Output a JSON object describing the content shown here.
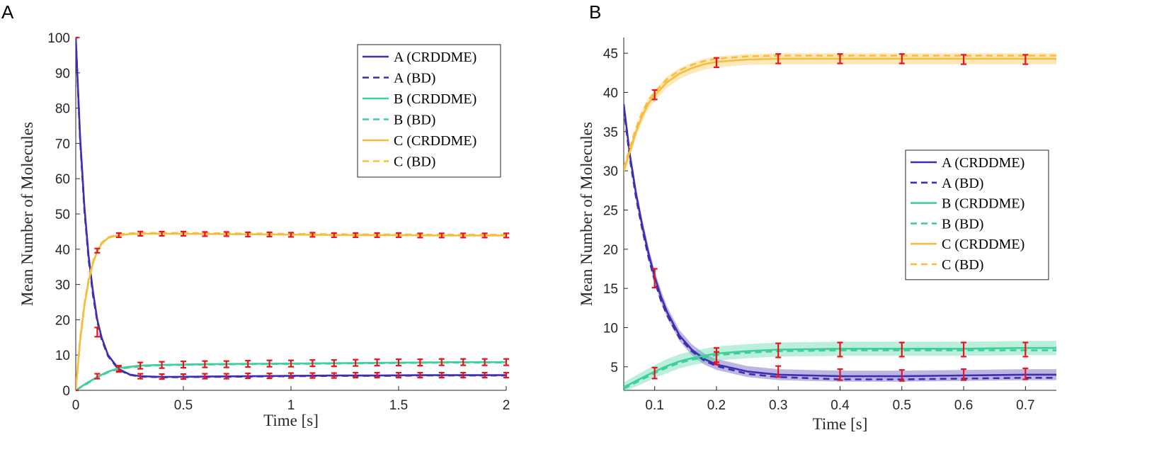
{
  "colors": {
    "A": "#3f2fae",
    "B": "#3fcf9a",
    "C": "#f7bd3c",
    "errorbar": "#e8141d",
    "axis": "#262626"
  },
  "chart_data": [
    {
      "panel": "A",
      "type": "line",
      "xlabel": "Time [s]",
      "ylabel": "Mean Number of Molecules",
      "xlim": [
        0,
        2
      ],
      "ylim": [
        0,
        100
      ],
      "xticks": [
        0,
        0.5,
        1,
        1.5,
        2
      ],
      "xtick_labels": [
        "0",
        "0.5",
        "1",
        "1.5",
        "2"
      ],
      "yticks": [
        0,
        10,
        20,
        30,
        40,
        50,
        60,
        70,
        80,
        90,
        100
      ],
      "ytick_labels": [
        "0",
        "10",
        "20",
        "30",
        "40",
        "50",
        "60",
        "70",
        "80",
        "90",
        "100"
      ],
      "legend_position": "top-right",
      "series": [
        {
          "name": "A (CRDDME)",
          "key": "A",
          "style": "solid",
          "x": [
            0,
            0.02,
            0.04,
            0.06,
            0.08,
            0.1,
            0.12,
            0.15,
            0.2,
            0.25,
            0.3,
            0.4,
            0.6,
            0.8,
            1.0,
            1.2,
            1.4,
            1.6,
            1.8,
            2.0
          ],
          "y": [
            100,
            72,
            52,
            38,
            28,
            20,
            15,
            10,
            6,
            4.5,
            4,
            3.8,
            3.9,
            4,
            4.1,
            4.2,
            4.2,
            4.3,
            4.3,
            4.3
          ]
        },
        {
          "name": "A (BD)",
          "key": "A",
          "style": "dashed",
          "x": [
            0,
            0.02,
            0.04,
            0.06,
            0.08,
            0.1,
            0.12,
            0.15,
            0.2,
            0.25,
            0.3,
            0.4,
            0.6,
            0.8,
            1.0,
            1.2,
            1.4,
            1.6,
            1.8,
            2.0
          ],
          "y": [
            100,
            71,
            51,
            37,
            27,
            19.5,
            14.5,
            9.7,
            5.8,
            4.4,
            3.9,
            3.7,
            3.8,
            3.9,
            4,
            4.1,
            4.1,
            4.2,
            4.2,
            4.2
          ]
        },
        {
          "name": "B (CRDDME)",
          "key": "B",
          "style": "solid",
          "x": [
            0,
            0.05,
            0.1,
            0.15,
            0.2,
            0.3,
            0.4,
            0.6,
            0.8,
            1.0,
            1.2,
            1.4,
            1.6,
            1.8,
            2.0
          ],
          "y": [
            0,
            2,
            3.8,
            5.3,
            6.3,
            7.0,
            7.2,
            7.4,
            7.5,
            7.6,
            7.7,
            7.8,
            7.9,
            8.0,
            8.0
          ]
        },
        {
          "name": "B (BD)",
          "key": "B",
          "style": "dashed",
          "x": [
            0,
            0.05,
            0.1,
            0.15,
            0.2,
            0.3,
            0.4,
            0.6,
            0.8,
            1.0,
            1.2,
            1.4,
            1.6,
            1.8,
            2.0
          ],
          "y": [
            0,
            1.8,
            3.6,
            5.1,
            6.1,
            6.8,
            7.1,
            7.3,
            7.4,
            7.5,
            7.6,
            7.7,
            7.8,
            7.9,
            7.9
          ]
        },
        {
          "name": "C (CRDDME)",
          "key": "C",
          "style": "solid",
          "x": [
            0,
            0.02,
            0.04,
            0.06,
            0.08,
            0.1,
            0.12,
            0.15,
            0.2,
            0.25,
            0.3,
            0.5,
            0.7,
            0.9,
            1.1,
            1.3,
            1.5,
            1.7,
            1.9,
            2.0
          ],
          "y": [
            0,
            14,
            24,
            31,
            36,
            39.5,
            41.5,
            43.2,
            44,
            44.3,
            44.4,
            44.4,
            44.3,
            44.2,
            44.1,
            44,
            44,
            43.9,
            43.9,
            43.9
          ]
        },
        {
          "name": "C (BD)",
          "key": "C",
          "style": "dashed",
          "x": [
            0,
            0.02,
            0.04,
            0.06,
            0.08,
            0.1,
            0.12,
            0.15,
            0.2,
            0.25,
            0.3,
            0.5,
            0.7,
            0.9,
            1.1,
            1.3,
            1.5,
            1.7,
            1.9,
            2.0
          ],
          "y": [
            0,
            14.5,
            24.5,
            31.5,
            36.5,
            39.8,
            41.8,
            43.4,
            44.2,
            44.5,
            44.6,
            44.6,
            44.5,
            44.4,
            44.3,
            44.2,
            44.2,
            44.1,
            44.1,
            44.1
          ]
        }
      ],
      "error_bars": [
        {
          "key": "A",
          "x": [
            0,
            0.1,
            0.2,
            0.3,
            0.4,
            0.5,
            0.6,
            0.7,
            0.8,
            0.9,
            1.0,
            1.1,
            1.2,
            1.3,
            1.4,
            1.5,
            1.6,
            1.7,
            1.8,
            1.9,
            2.0
          ],
          "y": [
            100,
            16.5,
            6,
            4,
            3.9,
            3.9,
            4,
            4,
            4.1,
            4.1,
            4.2,
            4.2,
            4.2,
            4.3,
            4.3,
            4.3,
            4.3,
            4.3,
            4.3,
            4.3,
            4.3
          ],
          "err": [
            0,
            1.3,
            0.8,
            0.7,
            0.7,
            0.7,
            0.7,
            0.7,
            0.7,
            0.7,
            0.7,
            0.7,
            0.7,
            0.7,
            0.7,
            0.7,
            0.7,
            0.7,
            0.7,
            0.7,
            0.7
          ]
        },
        {
          "key": "B",
          "x": [
            0.1,
            0.2,
            0.3,
            0.4,
            0.5,
            0.6,
            0.7,
            0.8,
            0.9,
            1.0,
            1.1,
            1.2,
            1.3,
            1.4,
            1.5,
            1.6,
            1.7,
            1.8,
            1.9,
            2.0
          ],
          "y": [
            4,
            6.2,
            7,
            7.2,
            7.3,
            7.4,
            7.4,
            7.5,
            7.6,
            7.6,
            7.7,
            7.7,
            7.8,
            7.9,
            7.9,
            7.9,
            8,
            8,
            8,
            8
          ],
          "err": [
            0.7,
            0.8,
            0.9,
            0.9,
            0.9,
            0.9,
            0.9,
            0.9,
            0.9,
            0.9,
            0.9,
            0.9,
            0.9,
            0.9,
            0.9,
            0.9,
            0.9,
            0.9,
            0.9,
            0.9
          ]
        },
        {
          "key": "C",
          "x": [
            0,
            0.1,
            0.2,
            0.3,
            0.4,
            0.5,
            0.6,
            0.7,
            0.8,
            0.9,
            1.0,
            1.1,
            1.2,
            1.3,
            1.4,
            1.5,
            1.6,
            1.7,
            1.8,
            1.9,
            2.0
          ],
          "y": [
            0,
            39.6,
            44,
            44.4,
            44.4,
            44.4,
            44.3,
            44.3,
            44.2,
            44.2,
            44.1,
            44.1,
            44,
            44,
            44,
            44,
            43.9,
            43.9,
            43.9,
            43.9,
            43.9
          ],
          "err": [
            0,
            0.6,
            0.6,
            0.6,
            0.6,
            0.6,
            0.6,
            0.6,
            0.6,
            0.6,
            0.6,
            0.6,
            0.6,
            0.6,
            0.6,
            0.6,
            0.6,
            0.6,
            0.6,
            0.6,
            0.6
          ]
        }
      ]
    },
    {
      "panel": "B",
      "type": "line",
      "xlabel": "Time [s]",
      "ylabel": "Mean Number of Molecules",
      "xlim": [
        0.05,
        0.75
      ],
      "ylim": [
        2,
        47
      ],
      "xticks": [
        0.1,
        0.2,
        0.3,
        0.4,
        0.5,
        0.6,
        0.7
      ],
      "xtick_labels": [
        "0.1",
        "0.2",
        "0.3",
        "0.4",
        "0.5",
        "0.6",
        "0.7"
      ],
      "yticks": [
        5,
        10,
        15,
        20,
        25,
        30,
        35,
        40,
        45
      ],
      "ytick_labels": [
        "5",
        "10",
        "15",
        "20",
        "25",
        "30",
        "35",
        "40",
        "45"
      ],
      "legend_position": "right",
      "series": [
        {
          "name": "A (CRDDME)",
          "key": "A",
          "style": "solid",
          "x": [
            0.05,
            0.06,
            0.07,
            0.08,
            0.09,
            0.1,
            0.11,
            0.12,
            0.14,
            0.16,
            0.18,
            0.2,
            0.25,
            0.3,
            0.4,
            0.5,
            0.6,
            0.7,
            0.75
          ],
          "y": [
            38.5,
            32,
            27,
            23,
            19.5,
            16.5,
            14,
            12,
            9,
            7.2,
            6,
            5.3,
            4.4,
            4,
            3.8,
            3.8,
            3.9,
            4,
            4
          ],
          "band": [
            0.6,
            0.8,
            0.8,
            0.8,
            0.8,
            0.8,
            0.8,
            0.7,
            0.7,
            0.7,
            0.7,
            0.7,
            0.7,
            0.7,
            0.7,
            0.7,
            0.7,
            0.7,
            0.7
          ]
        },
        {
          "name": "A (BD)",
          "key": "A",
          "style": "dashed",
          "x": [
            0.05,
            0.06,
            0.07,
            0.08,
            0.09,
            0.1,
            0.11,
            0.12,
            0.14,
            0.16,
            0.18,
            0.2,
            0.25,
            0.3,
            0.4,
            0.5,
            0.6,
            0.7,
            0.75
          ],
          "y": [
            38,
            31.5,
            26.5,
            22.5,
            19,
            16,
            13.5,
            11.6,
            8.7,
            7,
            5.8,
            5.1,
            4.1,
            3.7,
            3.4,
            3.4,
            3.5,
            3.6,
            3.6
          ]
        },
        {
          "name": "B (CRDDME)",
          "key": "B",
          "style": "solid",
          "x": [
            0.05,
            0.07,
            0.09,
            0.1,
            0.12,
            0.14,
            0.16,
            0.18,
            0.2,
            0.25,
            0.3,
            0.4,
            0.5,
            0.6,
            0.7,
            0.75
          ],
          "y": [
            2.4,
            3.2,
            4,
            4.4,
            5.1,
            5.7,
            6.1,
            6.4,
            6.7,
            7.0,
            7.2,
            7.3,
            7.3,
            7.3,
            7.4,
            7.4
          ],
          "band": [
            0.6,
            0.7,
            0.8,
            0.8,
            0.9,
            0.9,
            0.9,
            0.9,
            0.9,
            0.9,
            0.9,
            0.9,
            0.9,
            0.9,
            0.9,
            0.9
          ]
        },
        {
          "name": "B (BD)",
          "key": "B",
          "style": "dashed",
          "x": [
            0.05,
            0.07,
            0.09,
            0.1,
            0.12,
            0.14,
            0.16,
            0.18,
            0.2,
            0.25,
            0.3,
            0.4,
            0.5,
            0.6,
            0.7,
            0.75
          ],
          "y": [
            2.2,
            3.0,
            3.8,
            4.2,
            4.9,
            5.5,
            5.9,
            6.2,
            6.5,
            6.8,
            7.0,
            7.1,
            7.1,
            7.1,
            7.1,
            7.1
          ]
        },
        {
          "name": "C (CRDDME)",
          "key": "C",
          "style": "solid",
          "x": [
            0.05,
            0.06,
            0.07,
            0.08,
            0.09,
            0.1,
            0.12,
            0.14,
            0.16,
            0.18,
            0.2,
            0.25,
            0.3,
            0.4,
            0.5,
            0.6,
            0.7,
            0.75
          ],
          "y": [
            30,
            32.5,
            35,
            37,
            38.6,
            39.6,
            41.3,
            42.4,
            43.1,
            43.6,
            43.9,
            44.2,
            44.3,
            44.3,
            44.3,
            44.3,
            44.3,
            44.3
          ],
          "band": [
            0.6,
            0.7,
            0.7,
            0.7,
            0.7,
            0.7,
            0.7,
            0.7,
            0.7,
            0.7,
            0.7,
            0.7,
            0.7,
            0.7,
            0.7,
            0.7,
            0.7,
            0.7
          ]
        },
        {
          "name": "C (BD)",
          "key": "C",
          "style": "dashed",
          "x": [
            0.05,
            0.06,
            0.07,
            0.08,
            0.09,
            0.1,
            0.12,
            0.14,
            0.16,
            0.18,
            0.2,
            0.25,
            0.3,
            0.4,
            0.5,
            0.6,
            0.7,
            0.75
          ],
          "y": [
            30.3,
            33,
            35.5,
            37.5,
            39,
            40,
            41.7,
            42.8,
            43.5,
            44,
            44.3,
            44.6,
            44.7,
            44.7,
            44.7,
            44.7,
            44.7,
            44.7
          ]
        }
      ],
      "error_bars": [
        {
          "key": "A",
          "x": [
            0.1,
            0.2,
            0.3,
            0.4,
            0.5,
            0.6,
            0.7
          ],
          "y": [
            16.3,
            6.1,
            4.4,
            4.0,
            3.9,
            4.0,
            4.1
          ],
          "err": [
            1.2,
            0.8,
            0.7,
            0.7,
            0.7,
            0.7,
            0.7
          ]
        },
        {
          "key": "B",
          "x": [
            0.1,
            0.2,
            0.3,
            0.4,
            0.5,
            0.6,
            0.7
          ],
          "y": [
            4.2,
            6.5,
            7.1,
            7.2,
            7.2,
            7.2,
            7.2
          ],
          "err": [
            0.7,
            0.9,
            0.9,
            0.9,
            0.9,
            0.9,
            0.9
          ]
        },
        {
          "key": "C",
          "x": [
            0.1,
            0.2,
            0.3,
            0.4,
            0.5,
            0.6,
            0.7
          ],
          "y": [
            39.7,
            43.8,
            44.3,
            44.3,
            44.3,
            44.2,
            44.2
          ],
          "err": [
            0.6,
            0.6,
            0.6,
            0.6,
            0.6,
            0.6,
            0.6
          ]
        }
      ]
    }
  ]
}
